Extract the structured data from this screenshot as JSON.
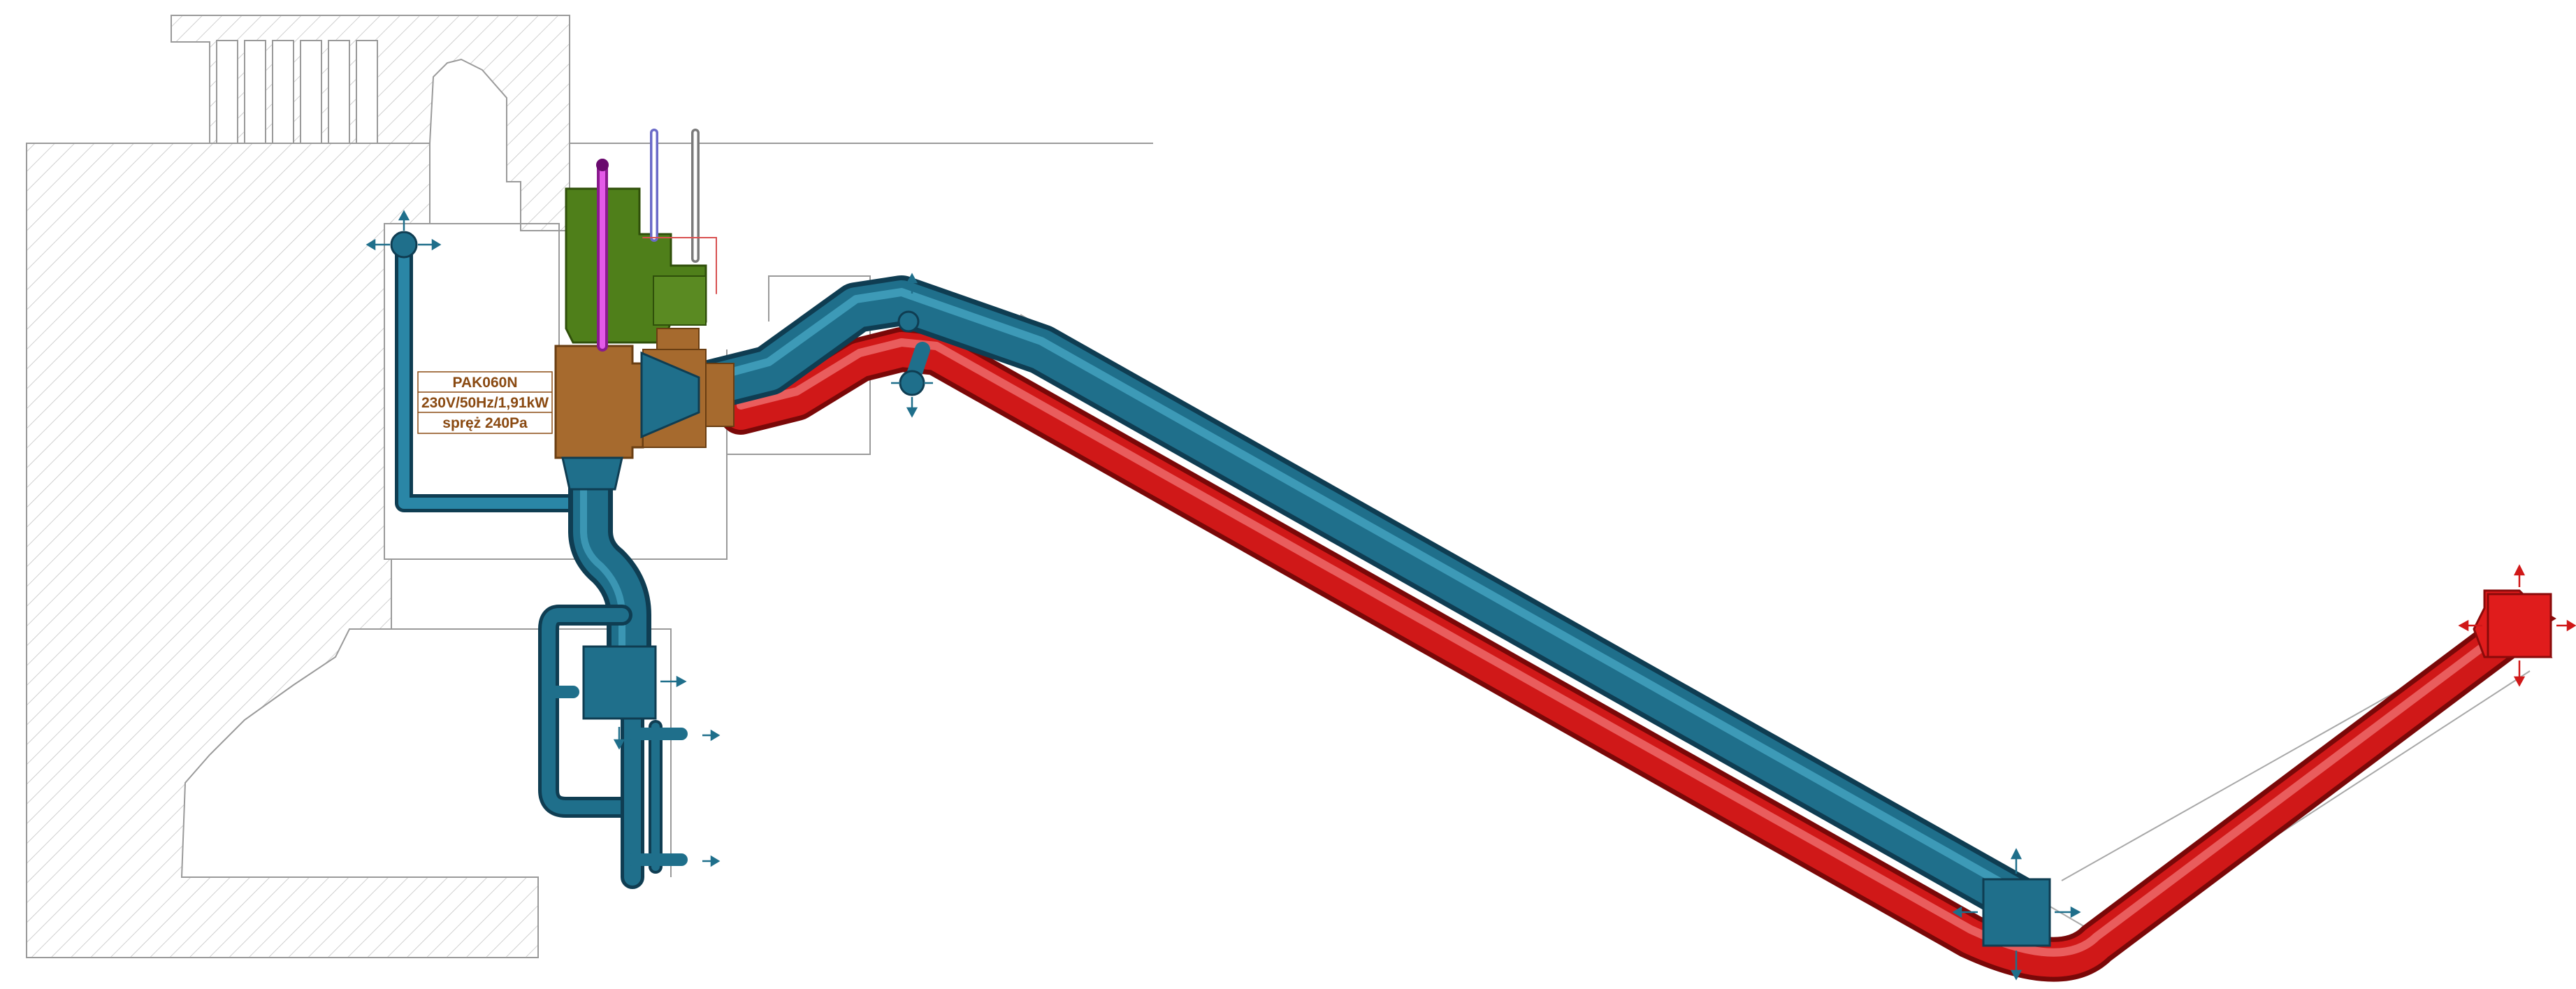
{
  "unit_label": {
    "model": "PAK060N",
    "power": "230V/50Hz/1,91kW",
    "pressure": "spręż 240Pa"
  },
  "colors": {
    "supply_duct": "#1f6f8b",
    "supply_duct_light": "#3a9cbb",
    "supply_duct_dark": "#0f3d52",
    "exhaust_duct": "#d01818",
    "exhaust_duct_light": "#f05a5a",
    "exhaust_duct_dark": "#7a0808",
    "unit_body": "#a66a2e",
    "unit_top": "#4f7f1a",
    "refrigerant_pipe": "#d83ae0",
    "label_text": "#8a4a12",
    "wall_hatch": "#bdbdbd",
    "outline": "#9a9a9a"
  }
}
